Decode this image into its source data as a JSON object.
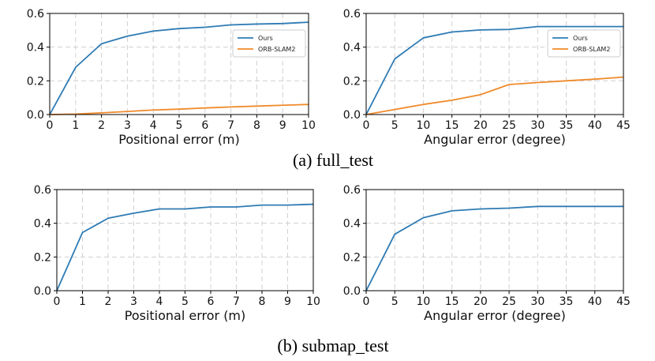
{
  "colors": {
    "ours": "#2e7bb4",
    "orb": "#f08a2a"
  },
  "captions": {
    "a": "(a) full_test",
    "b": "(b) submap_test"
  },
  "chart_data": [
    {
      "type": "line",
      "xlabel": "Positional error (m)",
      "ylabel": "",
      "x": [
        0,
        1,
        2,
        3,
        4,
        5,
        6,
        7,
        8,
        9,
        10
      ],
      "xticks": [
        "0",
        "1",
        "2",
        "3",
        "4",
        "5",
        "6",
        "7",
        "8",
        "9",
        "10"
      ],
      "xlim": [
        0,
        10
      ],
      "ylim": [
        0,
        0.6
      ],
      "yticks": [
        "0.0",
        "0.2",
        "0.4",
        "0.6"
      ],
      "grid": true,
      "legend": "top-right",
      "series": [
        {
          "name": "Ours",
          "color": "#2e7bb4",
          "values": [
            0.0,
            0.28,
            0.42,
            0.465,
            0.495,
            0.51,
            0.518,
            0.532,
            0.537,
            0.54,
            0.548
          ]
        },
        {
          "name": "ORB-SLAM2",
          "color": "#f08a2a",
          "values": [
            0.0,
            0.003,
            0.01,
            0.018,
            0.027,
            0.032,
            0.039,
            0.045,
            0.05,
            0.055,
            0.06
          ]
        }
      ]
    },
    {
      "type": "line",
      "xlabel": "Angular error (degree)",
      "ylabel": "",
      "x": [
        0,
        5,
        10,
        15,
        20,
        25,
        30,
        35,
        40,
        45
      ],
      "xticks": [
        "0",
        "5",
        "10",
        "15",
        "20",
        "25",
        "30",
        "35",
        "40",
        "45"
      ],
      "xlim": [
        0,
        45
      ],
      "ylim": [
        0,
        0.6
      ],
      "yticks": [
        "0.0",
        "0.2",
        "0.4",
        "0.6"
      ],
      "grid": true,
      "legend": "top-right",
      "series": [
        {
          "name": "Ours",
          "color": "#2e7bb4",
          "values": [
            0.0,
            0.33,
            0.455,
            0.49,
            0.502,
            0.505,
            0.522,
            0.522,
            0.522,
            0.522
          ]
        },
        {
          "name": "ORB-SLAM2",
          "color": "#f08a2a",
          "values": [
            0.0,
            0.03,
            0.06,
            0.085,
            0.118,
            0.178,
            0.19,
            0.2,
            0.21,
            0.222
          ]
        }
      ]
    },
    {
      "type": "line",
      "xlabel": "Positional error (m)",
      "ylabel": "",
      "x": [
        0,
        1,
        2,
        3,
        4,
        5,
        6,
        7,
        8,
        9,
        10
      ],
      "xticks": [
        "0",
        "1",
        "2",
        "3",
        "4",
        "5",
        "6",
        "7",
        "8",
        "9",
        "10"
      ],
      "xlim": [
        0,
        10
      ],
      "ylim": [
        0,
        0.6
      ],
      "yticks": [
        "0.0",
        "0.2",
        "0.4",
        "0.6"
      ],
      "grid": true,
      "series": [
        {
          "color": "#2e7bb4",
          "values": [
            0.0,
            0.345,
            0.43,
            0.46,
            0.485,
            0.485,
            0.497,
            0.497,
            0.508,
            0.508,
            0.513
          ]
        }
      ]
    },
    {
      "type": "line",
      "xlabel": "Angular error (degree)",
      "ylabel": "",
      "x": [
        0,
        5,
        10,
        15,
        20,
        25,
        30,
        35,
        40,
        45
      ],
      "xticks": [
        "0",
        "5",
        "10",
        "15",
        "20",
        "25",
        "30",
        "35",
        "40",
        "45"
      ],
      "xlim": [
        0,
        45
      ],
      "ylim": [
        0,
        0.6
      ],
      "yticks": [
        "0.0",
        "0.2",
        "0.4",
        "0.6"
      ],
      "grid": true,
      "series": [
        {
          "color": "#2e7bb4",
          "values": [
            0.0,
            0.335,
            0.433,
            0.474,
            0.485,
            0.49,
            0.5,
            0.5,
            0.5,
            0.5
          ]
        }
      ]
    }
  ]
}
